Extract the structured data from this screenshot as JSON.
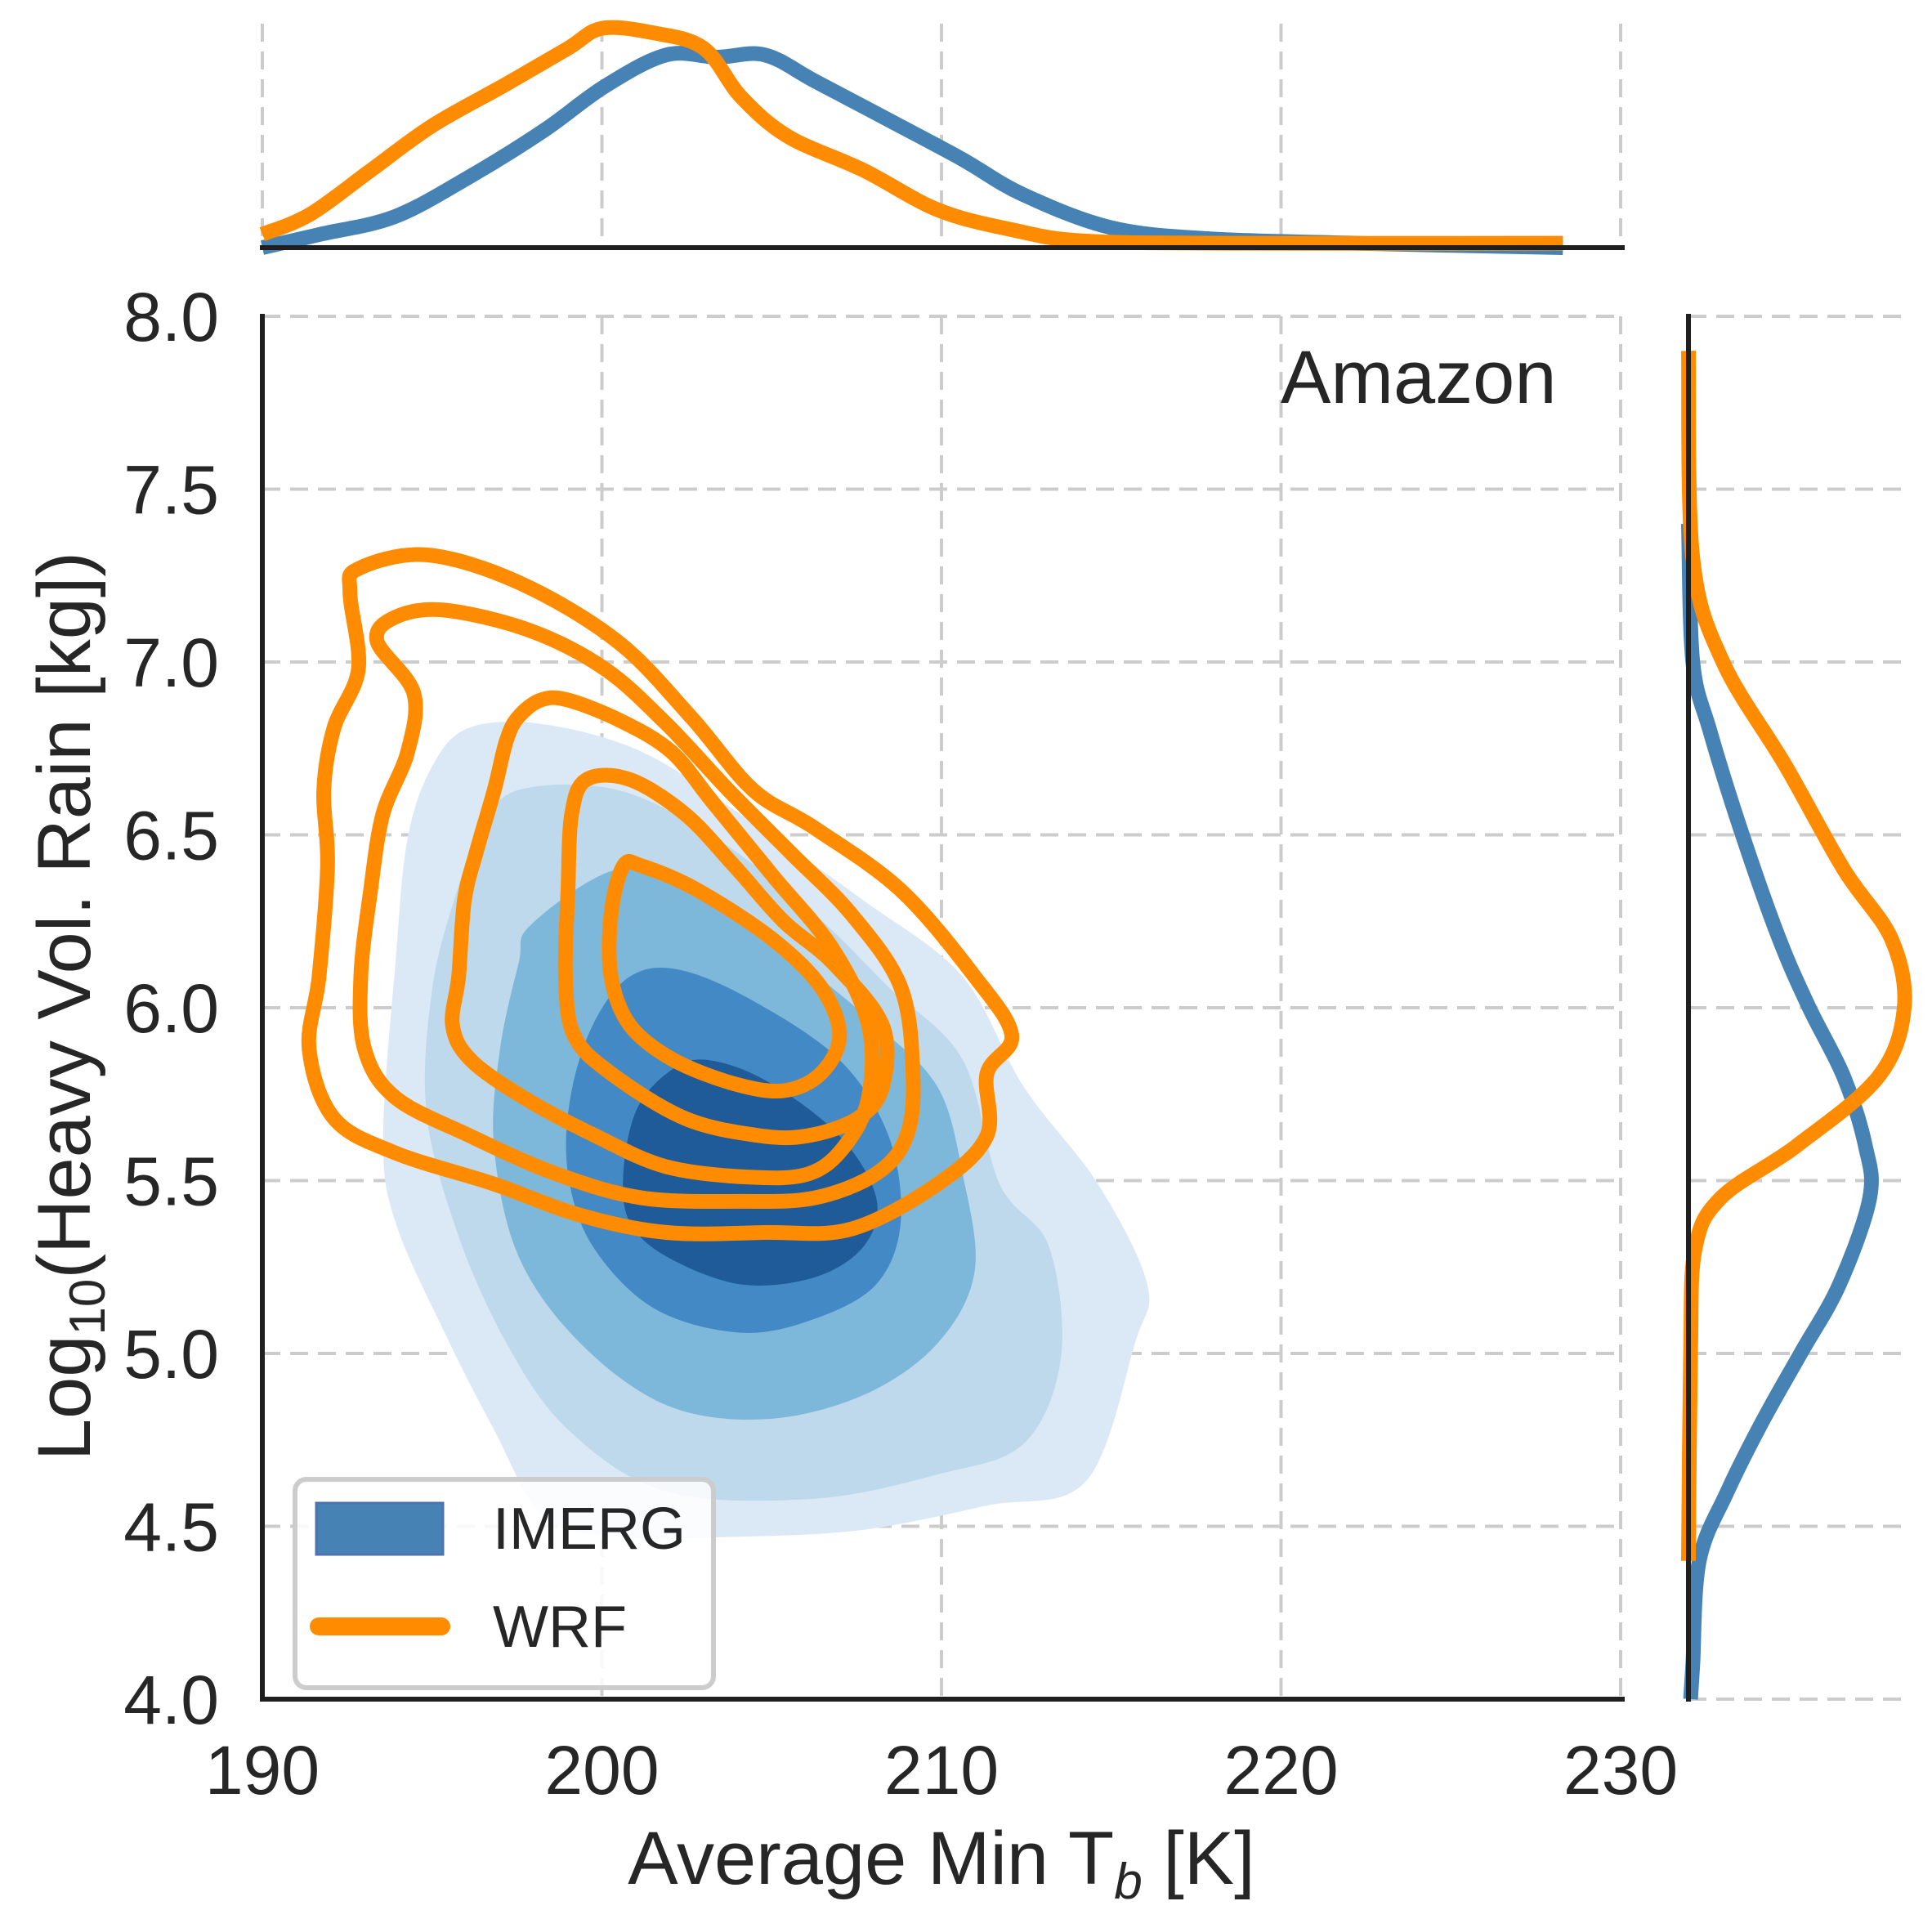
{
  "chart_data": {
    "type": "jointplot-kde",
    "annotation": "Amazon",
    "xlabel_main": "Average Min T",
    "xlabel_sub": "b",
    "xlabel_unit": " [K]",
    "ylabel_main": "Log",
    "ylabel_sub": "10",
    "ylabel_rest": "(Heavy Vol. Rain [kg])",
    "xlim": [
      190,
      230
    ],
    "ylim": [
      4.0,
      8.0
    ],
    "xticks": [
      190,
      200,
      210,
      220,
      230
    ],
    "xtick_labels": [
      "190",
      "200",
      "210",
      "220",
      "230"
    ],
    "yticks": [
      4.0,
      4.5,
      5.0,
      5.5,
      6.0,
      6.5,
      7.0,
      7.5,
      8.0
    ],
    "ytick_labels": [
      "4.0",
      "4.5",
      "5.0",
      "5.5",
      "6.0",
      "6.5",
      "7.0",
      "7.5",
      "8.0"
    ],
    "grid": true,
    "legend": {
      "placement": "lower-left",
      "entries": [
        {
          "label": "IMERG",
          "kind": "filled-patch",
          "color": "#4682b4"
        },
        {
          "label": "WRF",
          "kind": "line",
          "color": "#ff8c00"
        }
      ]
    },
    "colors": {
      "wrf": "#ff8c00",
      "imerg_line": "#4682b4",
      "imerg_fill_levels": [
        "#dbe9f6",
        "#bed8ec",
        "#7db8da",
        "#4289c5",
        "#1f5a99"
      ]
    },
    "imerg_filled_contours": [
      {
        "level": 1,
        "points": [
          [
            196.1,
            6.81
          ],
          [
            198.28,
            6.82
          ],
          [
            201.18,
            6.74
          ],
          [
            204.08,
            6.56
          ],
          [
            207.71,
            6.31
          ],
          [
            210.62,
            6.09
          ],
          [
            212.43,
            5.77
          ],
          [
            214.61,
            5.49
          ],
          [
            216.06,
            5.2
          ],
          [
            215.7,
            5.03
          ],
          [
            214.25,
            4.63
          ],
          [
            211.34,
            4.56
          ],
          [
            207.71,
            4.49
          ],
          [
            204.08,
            4.47
          ],
          [
            200.45,
            4.47
          ],
          [
            198.28,
            4.53
          ],
          [
            196.82,
            4.78
          ],
          [
            195.37,
            5.06
          ],
          [
            193.92,
            5.38
          ],
          [
            193.56,
            5.63
          ],
          [
            193.92,
            6.13
          ],
          [
            194.28,
            6.49
          ],
          [
            195.01,
            6.7
          ]
        ]
      },
      {
        "level": 2,
        "points": [
          [
            197.55,
            6.63
          ],
          [
            200.45,
            6.63
          ],
          [
            203.36,
            6.49
          ],
          [
            206.26,
            6.27
          ],
          [
            208.44,
            6.06
          ],
          [
            210.62,
            5.85
          ],
          [
            211.71,
            5.49
          ],
          [
            213.16,
            5.31
          ],
          [
            213.52,
            4.99
          ],
          [
            212.43,
            4.74
          ],
          [
            209.89,
            4.65
          ],
          [
            206.26,
            4.58
          ],
          [
            201.91,
            4.6
          ],
          [
            199.0,
            4.78
          ],
          [
            197.19,
            5.03
          ],
          [
            195.74,
            5.35
          ],
          [
            194.83,
            5.7
          ],
          [
            195.01,
            6.06
          ],
          [
            195.74,
            6.34
          ],
          [
            196.46,
            6.52
          ]
        ]
      },
      {
        "level": 3,
        "points": [
          [
            197.91,
            6.24
          ],
          [
            200.45,
            6.4
          ],
          [
            202.63,
            6.34
          ],
          [
            205.54,
            6.15
          ],
          [
            208.08,
            5.95
          ],
          [
            209.89,
            5.77
          ],
          [
            210.62,
            5.52
          ],
          [
            210.98,
            5.24
          ],
          [
            209.89,
            5.03
          ],
          [
            207.71,
            4.88
          ],
          [
            204.81,
            4.81
          ],
          [
            201.91,
            4.85
          ],
          [
            199.36,
            5.03
          ],
          [
            197.55,
            5.28
          ],
          [
            196.82,
            5.6
          ],
          [
            197.0,
            5.88
          ],
          [
            197.55,
            6.13
          ]
        ]
      },
      {
        "level": 4,
        "points": [
          [
            199.73,
            5.95
          ],
          [
            200.82,
            6.09
          ],
          [
            202.27,
            6.11
          ],
          [
            204.45,
            6.02
          ],
          [
            206.99,
            5.85
          ],
          [
            208.44,
            5.63
          ],
          [
            208.8,
            5.38
          ],
          [
            208.08,
            5.2
          ],
          [
            206.26,
            5.1
          ],
          [
            204.08,
            5.06
          ],
          [
            201.54,
            5.13
          ],
          [
            199.73,
            5.31
          ],
          [
            199.0,
            5.52
          ],
          [
            199.07,
            5.74
          ]
        ]
      },
      {
        "level": 5,
        "points": [
          [
            201.91,
            5.81
          ],
          [
            203.0,
            5.85
          ],
          [
            204.81,
            5.79
          ],
          [
            206.99,
            5.63
          ],
          [
            208.08,
            5.45
          ],
          [
            207.71,
            5.31
          ],
          [
            206.26,
            5.22
          ],
          [
            204.08,
            5.2
          ],
          [
            201.91,
            5.28
          ],
          [
            200.82,
            5.38
          ],
          [
            200.63,
            5.52
          ],
          [
            201.0,
            5.7
          ]
        ]
      }
    ],
    "wrf_line_contours": [
      {
        "level": 1,
        "points": [
          [
            192.58,
            7.2
          ],
          [
            192.83,
            7.27
          ],
          [
            194.83,
            7.31
          ],
          [
            197.55,
            7.23
          ],
          [
            200.45,
            7.06
          ],
          [
            202.63,
            6.84
          ],
          [
            204.45,
            6.63
          ],
          [
            206.26,
            6.52
          ],
          [
            208.8,
            6.34
          ],
          [
            210.98,
            6.09
          ],
          [
            212.07,
            5.92
          ],
          [
            211.34,
            5.81
          ],
          [
            211.34,
            5.63
          ],
          [
            209.89,
            5.49
          ],
          [
            207.35,
            5.36
          ],
          [
            204.81,
            5.35
          ],
          [
            201.91,
            5.35
          ],
          [
            199.36,
            5.4
          ],
          [
            196.82,
            5.49
          ],
          [
            193.92,
            5.58
          ],
          [
            192.11,
            5.68
          ],
          [
            191.38,
            5.88
          ],
          [
            191.67,
            6.09
          ],
          [
            191.92,
            6.41
          ],
          [
            191.81,
            6.63
          ],
          [
            192.11,
            6.81
          ],
          [
            192.83,
            6.98
          ]
        ]
      },
      {
        "level": 2,
        "points": [
          [
            193.38,
            7.06
          ],
          [
            193.92,
            7.13
          ],
          [
            195.37,
            7.15
          ],
          [
            197.91,
            7.09
          ],
          [
            200.09,
            6.98
          ],
          [
            201.91,
            6.82
          ],
          [
            203.72,
            6.63
          ],
          [
            205.54,
            6.45
          ],
          [
            207.35,
            6.27
          ],
          [
            208.8,
            6.06
          ],
          [
            209.16,
            5.81
          ],
          [
            208.98,
            5.63
          ],
          [
            208.08,
            5.52
          ],
          [
            206.26,
            5.45
          ],
          [
            204.08,
            5.44
          ],
          [
            201.18,
            5.45
          ],
          [
            198.64,
            5.52
          ],
          [
            196.1,
            5.63
          ],
          [
            193.92,
            5.74
          ],
          [
            193.01,
            5.88
          ],
          [
            192.9,
            6.09
          ],
          [
            193.19,
            6.34
          ],
          [
            193.55,
            6.56
          ],
          [
            194.28,
            6.74
          ],
          [
            194.46,
            6.91
          ]
        ]
      },
      {
        "level": 3,
        "points": [
          [
            197.53,
            6.84
          ],
          [
            198.2,
            6.89
          ],
          [
            199.0,
            6.89
          ],
          [
            200.55,
            6.83
          ],
          [
            202.05,
            6.74
          ],
          [
            203.3,
            6.59
          ],
          [
            205.05,
            6.38
          ],
          [
            206.8,
            6.17
          ],
          [
            207.85,
            5.95
          ],
          [
            207.85,
            5.74
          ],
          [
            207.15,
            5.6
          ],
          [
            206.1,
            5.52
          ],
          [
            204.35,
            5.51
          ],
          [
            201.9,
            5.54
          ],
          [
            199.8,
            5.63
          ],
          [
            197.7,
            5.74
          ],
          [
            196.13,
            5.85
          ],
          [
            195.6,
            5.95
          ],
          [
            195.78,
            6.09
          ],
          [
            195.95,
            6.31
          ],
          [
            196.3,
            6.45
          ],
          [
            196.83,
            6.63
          ],
          [
            197.18,
            6.77
          ]
        ]
      },
      {
        "level": 4,
        "points": [
          [
            199.55,
            6.66
          ],
          [
            200.82,
            6.66
          ],
          [
            202.45,
            6.56
          ],
          [
            203.9,
            6.41
          ],
          [
            205.35,
            6.25
          ],
          [
            206.8,
            6.13
          ],
          [
            208.26,
            5.95
          ],
          [
            208.26,
            5.77
          ],
          [
            207.53,
            5.68
          ],
          [
            206.08,
            5.63
          ],
          [
            204.63,
            5.63
          ],
          [
            202.45,
            5.68
          ],
          [
            200.27,
            5.81
          ],
          [
            199.18,
            5.92
          ],
          [
            198.93,
            6.09
          ],
          [
            199.0,
            6.34
          ],
          [
            199.11,
            6.56
          ]
        ]
      },
      {
        "level": 5,
        "points": [
          [
            200.63,
            6.41
          ],
          [
            201.18,
            6.41
          ],
          [
            202.82,
            6.34
          ],
          [
            205.0,
            6.2
          ],
          [
            206.45,
            6.06
          ],
          [
            207.0,
            5.92
          ],
          [
            206.45,
            5.81
          ],
          [
            205.36,
            5.76
          ],
          [
            203.9,
            5.78
          ],
          [
            202.09,
            5.85
          ],
          [
            200.82,
            5.95
          ],
          [
            200.27,
            6.09
          ],
          [
            200.27,
            6.27
          ]
        ]
      }
    ],
    "top_marginal": {
      "axis": "x",
      "series": [
        {
          "name": "IMERG",
          "x": [
            190,
            191.7,
            193.9,
            196.1,
            198.3,
            200.1,
            201.9,
            203.4,
            204.8,
            206.3,
            208.4,
            210.6,
            212.4,
            215.0,
            217.9,
            222.2,
            228.3
          ],
          "density_rel": [
            0.0,
            0.06,
            0.14,
            0.32,
            0.53,
            0.73,
            0.87,
            0.86,
            0.87,
            0.75,
            0.58,
            0.4,
            0.24,
            0.09,
            0.04,
            0.02,
            0.0
          ]
        },
        {
          "name": "WRF",
          "x": [
            190,
            191.4,
            193.2,
            195.0,
            197.2,
            199.0,
            200.0,
            201.5,
            203.0,
            204.1,
            205.5,
            207.7,
            209.9,
            212.1,
            214.2,
            218.6,
            228.3
          ],
          "density_rel": [
            0.06,
            0.15,
            0.35,
            0.55,
            0.74,
            0.9,
            0.99,
            0.97,
            0.9,
            0.68,
            0.5,
            0.35,
            0.17,
            0.08,
            0.03,
            0.02,
            0.02
          ]
        }
      ]
    },
    "right_marginal": {
      "axis": "y",
      "series": [
        {
          "name": "IMERG",
          "y": [
            7.4,
            7.0,
            6.8,
            6.5,
            6.2,
            6.0,
            5.8,
            5.6,
            5.45,
            5.2,
            5.0,
            4.8,
            4.6,
            4.4,
            4.1,
            4.0
          ],
          "density_rel": [
            0.0,
            0.02,
            0.1,
            0.25,
            0.42,
            0.56,
            0.72,
            0.82,
            0.84,
            0.7,
            0.52,
            0.34,
            0.18,
            0.05,
            0.02,
            0.01
          ]
        },
        {
          "name": "WRF",
          "y": [
            7.9,
            7.3,
            7.0,
            6.7,
            6.4,
            6.2,
            6.0,
            5.8,
            5.6,
            5.45,
            5.3,
            5.0,
            4.4
          ],
          "density_rel": [
            0.0,
            0.02,
            0.16,
            0.45,
            0.72,
            0.94,
            1.0,
            0.88,
            0.5,
            0.15,
            0.03,
            0.01,
            0.0
          ]
        }
      ]
    }
  }
}
